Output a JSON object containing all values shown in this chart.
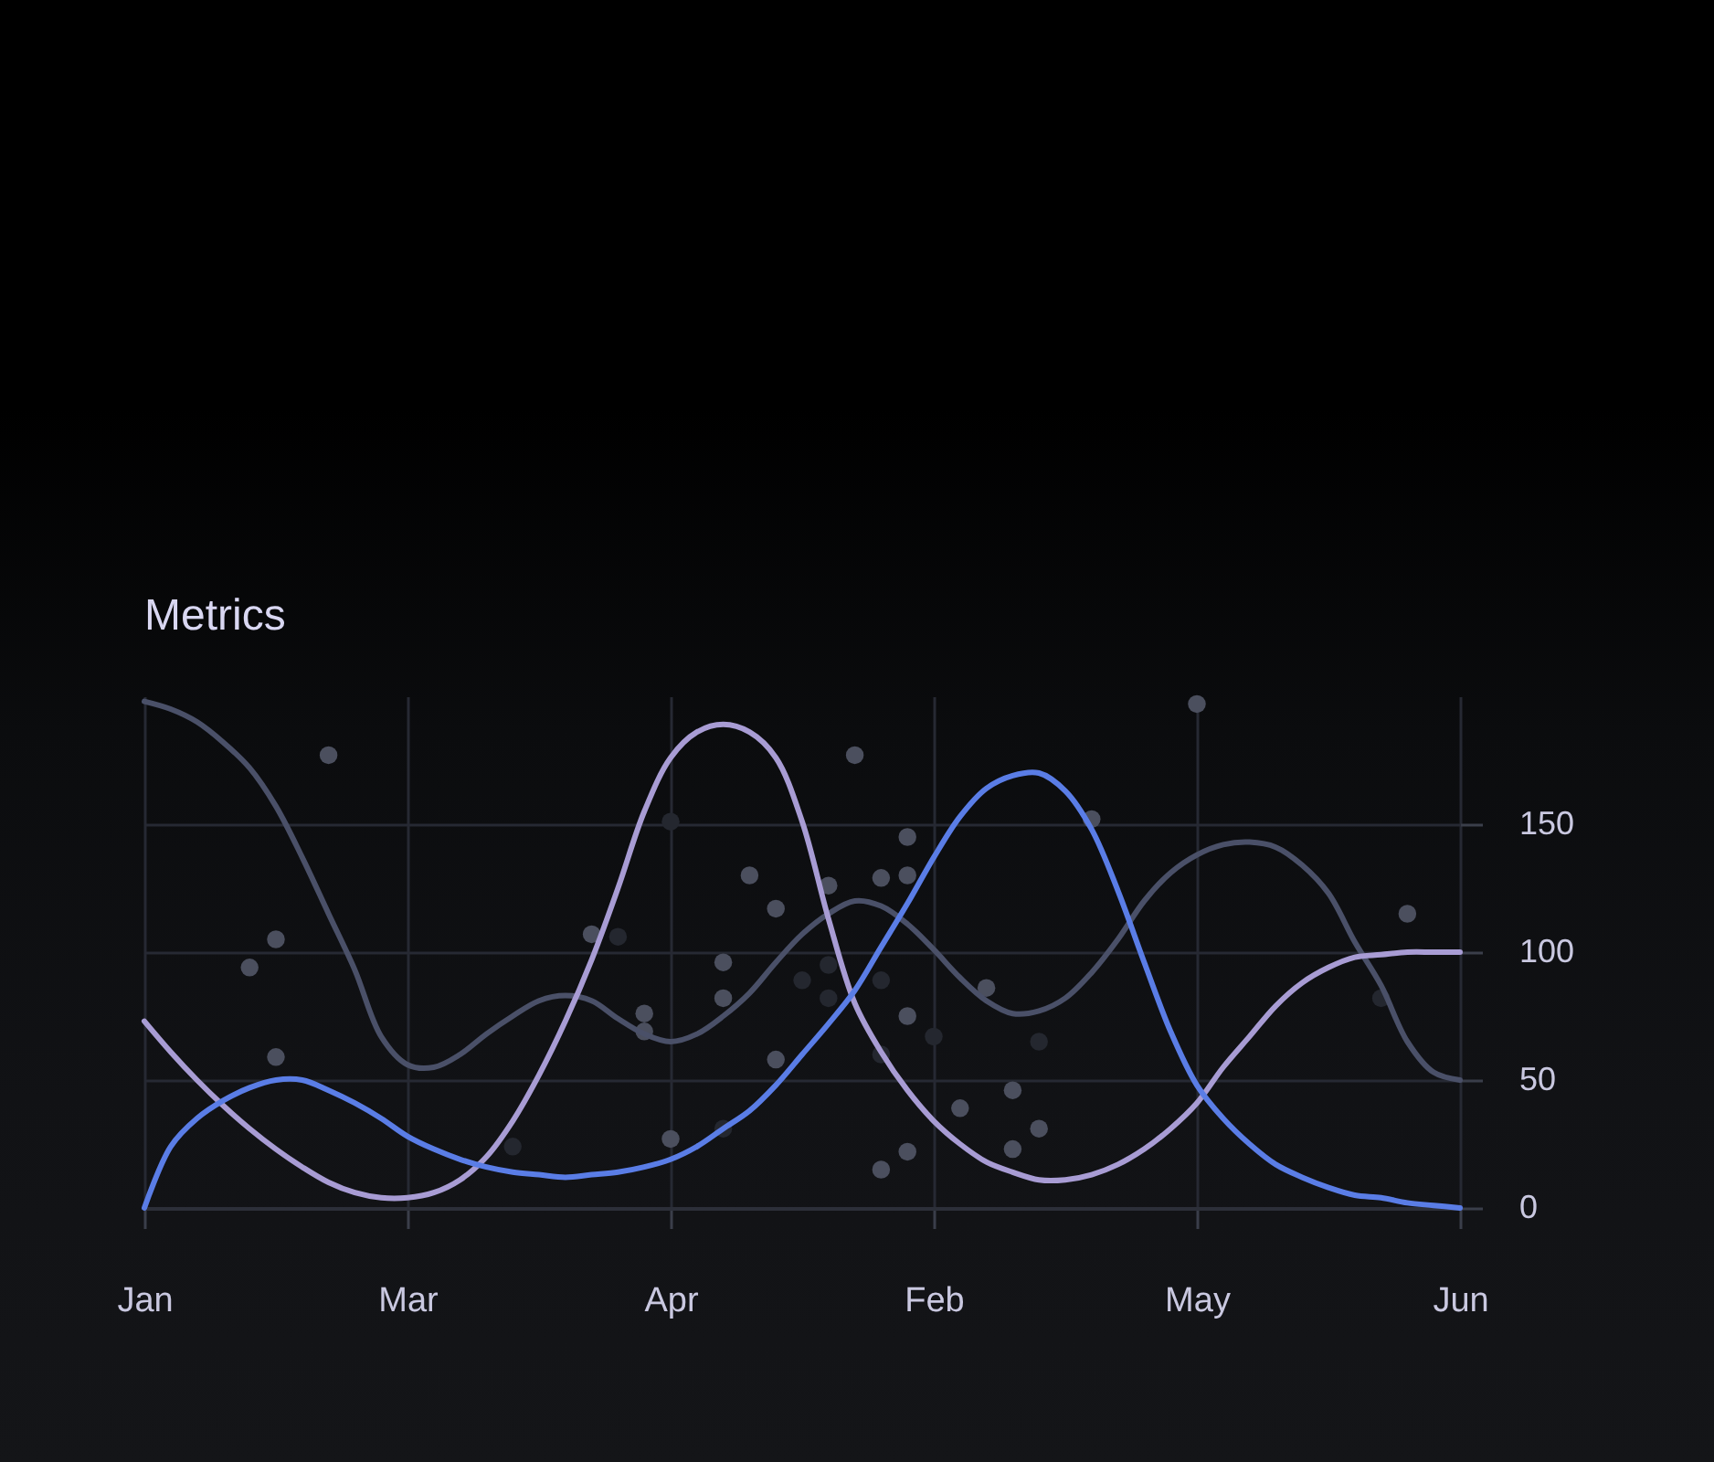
{
  "chart_data": {
    "type": "line",
    "title": "Metrics",
    "categories": [
      "Jan",
      null,
      null,
      null,
      null,
      null,
      null,
      null,
      null,
      null,
      "Mar",
      null,
      null,
      null,
      null,
      null,
      null,
      null,
      null,
      null,
      "Apr",
      null,
      null,
      null,
      null,
      null,
      null,
      null,
      null,
      null,
      "Feb",
      null,
      null,
      null,
      null,
      null,
      null,
      null,
      null,
      null,
      "May",
      null,
      null,
      null,
      null,
      null,
      null,
      null,
      null,
      null,
      "Jun"
    ],
    "ylim": [
      0,
      200
    ],
    "yticks": [
      0,
      50,
      100,
      150
    ],
    "grid": true,
    "series": [
      {
        "type": "scatter",
        "marker": "circle",
        "color": "#4b4f5e",
        "values": [
          null,
          null,
          null,
          null,
          94,
          105,
          null,
          177,
          null,
          null,
          null,
          null,
          null,
          null,
          null,
          null,
          null,
          107,
          null,
          76,
          27,
          null,
          96,
          130,
          117,
          null,
          126,
          177,
          129,
          145,
          null,
          39,
          86,
          46,
          31,
          null,
          152,
          null,
          null,
          null,
          197,
          null,
          null,
          null,
          null,
          null,
          null,
          null,
          115,
          null,
          null
        ]
      },
      {
        "type": "scatter",
        "marker": "circle",
        "color": "#4b4f5e",
        "values": [
          null,
          null,
          null,
          null,
          null,
          59,
          null,
          null,
          null,
          null,
          null,
          null,
          null,
          null,
          null,
          null,
          null,
          null,
          null,
          69,
          null,
          null,
          82,
          null,
          58,
          null,
          null,
          null,
          null,
          130,
          null,
          null,
          null,
          23,
          null,
          null,
          null,
          null,
          null,
          null,
          null,
          null,
          null,
          null,
          null,
          null,
          null,
          null,
          null,
          null,
          null
        ]
      },
      {
        "type": "scatter",
        "marker": "circle",
        "color": "#4b4f5e",
        "values": [
          null,
          null,
          null,
          null,
          null,
          null,
          null,
          null,
          null,
          null,
          null,
          null,
          null,
          null,
          null,
          null,
          null,
          null,
          null,
          null,
          null,
          null,
          null,
          null,
          null,
          null,
          null,
          null,
          15,
          75,
          null,
          null,
          null,
          null,
          null,
          null,
          null,
          null,
          null,
          null,
          null,
          null,
          null,
          null,
          null,
          null,
          null,
          null,
          null,
          null,
          null
        ]
      },
      {
        "type": "scatter",
        "marker": "circle",
        "color": "#4b4f5e",
        "values": [
          null,
          null,
          null,
          null,
          null,
          null,
          null,
          null,
          null,
          null,
          null,
          null,
          null,
          null,
          null,
          null,
          null,
          null,
          null,
          null,
          null,
          null,
          null,
          null,
          null,
          null,
          null,
          null,
          null,
          22,
          null,
          null,
          null,
          null,
          null,
          null,
          null,
          null,
          null,
          null,
          null,
          null,
          null,
          null,
          null,
          null,
          null,
          null,
          null,
          null,
          null
        ]
      },
      {
        "type": "scatter",
        "marker": "circle",
        "color": "#24272f",
        "values": [
          null,
          null,
          null,
          null,
          null,
          null,
          null,
          null,
          null,
          null,
          null,
          null,
          null,
          null,
          24,
          null,
          null,
          null,
          106,
          null,
          151,
          null,
          31,
          null,
          null,
          89,
          95,
          null,
          60,
          null,
          67,
          null,
          null,
          null,
          65,
          null,
          null,
          null,
          null,
          null,
          null,
          null,
          null,
          null,
          null,
          null,
          null,
          82,
          null,
          null,
          null
        ]
      },
      {
        "type": "scatter",
        "marker": "circle",
        "color": "#24272f",
        "values": [
          null,
          null,
          null,
          null,
          null,
          null,
          null,
          null,
          null,
          null,
          null,
          null,
          null,
          null,
          null,
          null,
          null,
          null,
          null,
          null,
          null,
          null,
          null,
          null,
          null,
          null,
          82,
          null,
          89,
          null,
          null,
          null,
          null,
          null,
          null,
          null,
          null,
          null,
          null,
          null,
          null,
          null,
          null,
          null,
          null,
          null,
          null,
          null,
          null,
          null,
          null
        ]
      },
      {
        "color": "#4a5068",
        "values": [
          198,
          195,
          190,
          182,
          172,
          157,
          137,
          115,
          93,
          67,
          56,
          55,
          60,
          68,
          75,
          81,
          83,
          81,
          74,
          68,
          65,
          68,
          75,
          84,
          96,
          107,
          115,
          120,
          118,
          111,
          101,
          90,
          81,
          76,
          77,
          82,
          92,
          105,
          120,
          131,
          138,
          142,
          143,
          141,
          134,
          123,
          104,
          87,
          65,
          53,
          50
        ]
      },
      {
        "color": "#a89cd4",
        "values": [
          73,
          61,
          50,
          40,
          31,
          23,
          16,
          10,
          6,
          4,
          4,
          6,
          11,
          20,
          34,
          52,
          73,
          97,
          125,
          155,
          176,
          186,
          189,
          186,
          176,
          151,
          113,
          80,
          61,
          46,
          34,
          25,
          18,
          14,
          11,
          11,
          13,
          17,
          23,
          31,
          41,
          55,
          67,
          79,
          88,
          94,
          98,
          99,
          100,
          100,
          100
        ]
      },
      {
        "color": "#5a7de6",
        "values": [
          0,
          24,
          35,
          42,
          47,
          50,
          50,
          46,
          41,
          35,
          28,
          23,
          19,
          16,
          14,
          13,
          12,
          13,
          14,
          16,
          19,
          24,
          31,
          38,
          48,
          60,
          72,
          85,
          102,
          119,
          137,
          153,
          164,
          169,
          170,
          163,
          148,
          124,
          96,
          69,
          48,
          35,
          25,
          17,
          12,
          8,
          5,
          4,
          2,
          1,
          0
        ]
      }
    ]
  }
}
